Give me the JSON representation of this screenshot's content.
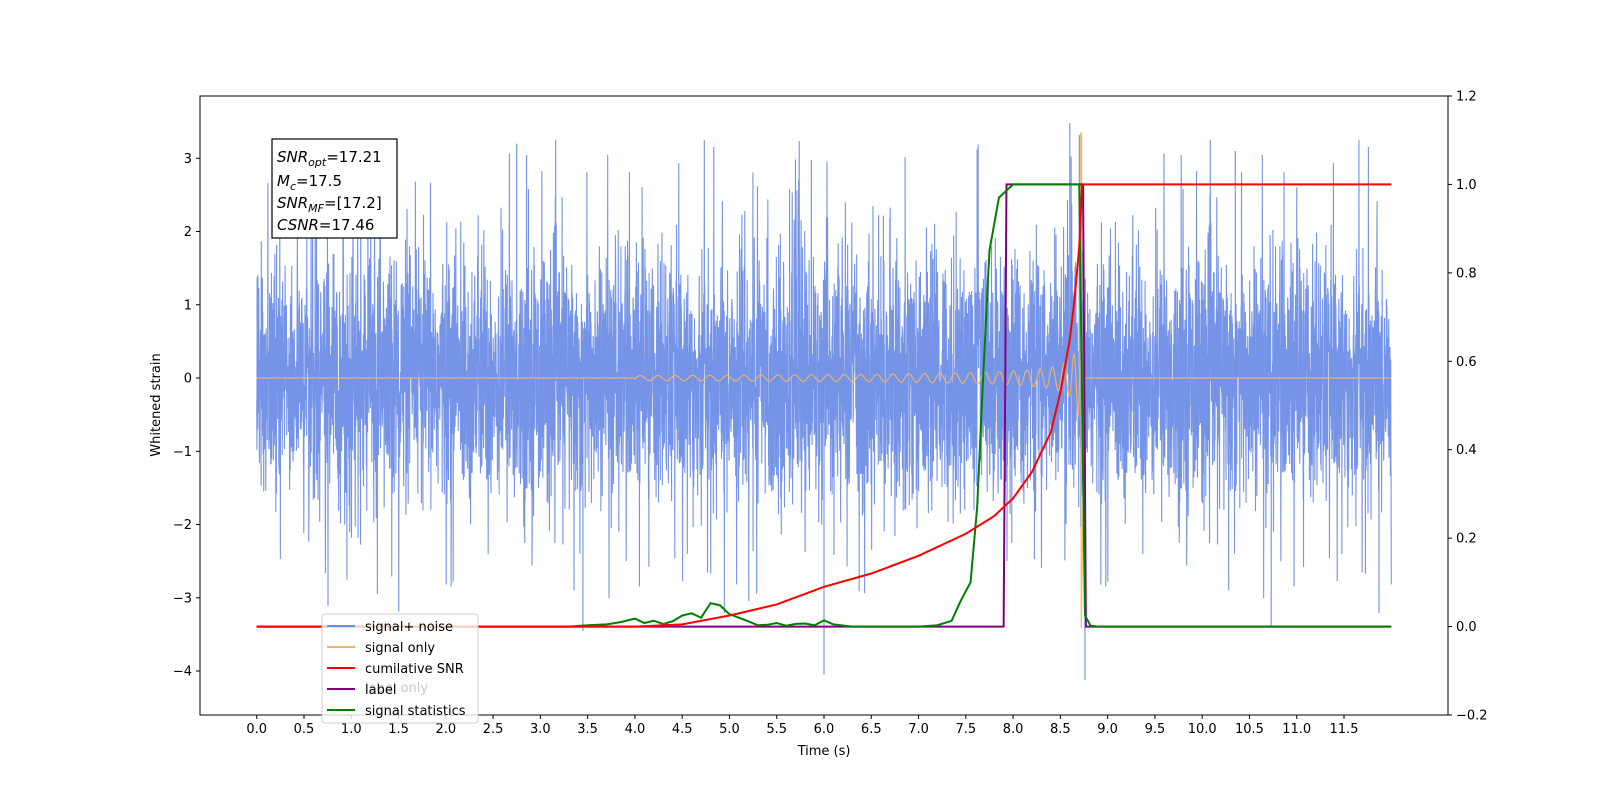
{
  "chart_data": {
    "type": "line",
    "xlabel": "Time (s)",
    "ylabel": "Whitened strain",
    "xlim": [
      -0.6,
      12.6
    ],
    "ylim_left": [
      -4.6,
      3.85
    ],
    "ylim_right": [
      -0.2,
      1.2
    ],
    "x_ticks": [
      "0.0",
      "0.5",
      "1.0",
      "1.5",
      "2.0",
      "2.5",
      "3.0",
      "3.5",
      "4.0",
      "4.5",
      "5.0",
      "5.5",
      "6.0",
      "6.5",
      "7.0",
      "7.5",
      "8.0",
      "8.5",
      "9.0",
      "9.5",
      "10.0",
      "10.5",
      "11.0",
      "11.5"
    ],
    "y_ticks_left": [
      "−4",
      "−3",
      "−2",
      "−1",
      "0",
      "1",
      "2",
      "3"
    ],
    "y_ticks_right": [
      "−0.2",
      "0.0",
      "0.2",
      "0.4",
      "0.6",
      "0.8",
      "1.0",
      "1.2"
    ],
    "grid": false,
    "legend_placement": "lower-left",
    "info_box": {
      "snr_opt": "17.21",
      "mc": "17.5",
      "snr_mf": "[17.2]",
      "csnr": "17.46"
    },
    "series": [
      {
        "name": "signal+ noise",
        "axis": "left",
        "color": "#6e8ee6",
        "t_start": 0.0,
        "t_end": 12.0,
        "typical_range": [
          -2.2,
          2.2
        ],
        "peaks": [
          3.48,
          3.32,
          3.2,
          3.1,
          -4.05,
          -4.12,
          -3.45,
          -3.4
        ]
      },
      {
        "name": "signal only",
        "axis": "left",
        "color": "#f5b461",
        "t_merger": 8.72,
        "peak_amplitude": 3.35,
        "min_value": -3.5
      },
      {
        "name": "cumilative SNR",
        "axis": "right",
        "color": "#ff0000",
        "x": [
          0.0,
          3.0,
          4.0,
          4.5,
          5.0,
          5.5,
          6.0,
          6.5,
          7.0,
          7.5,
          7.8,
          8.0,
          8.2,
          8.4,
          8.5,
          8.6,
          8.65,
          8.7,
          8.73,
          12.0
        ],
        "y": [
          0.0,
          0.0,
          0.0,
          0.005,
          0.025,
          0.05,
          0.09,
          0.12,
          0.16,
          0.21,
          0.25,
          0.29,
          0.35,
          0.44,
          0.53,
          0.65,
          0.74,
          0.86,
          1.0,
          1.0
        ]
      },
      {
        "name": "label",
        "axis": "right",
        "color": "#800080",
        "x": [
          0.0,
          7.9,
          7.93,
          8.74,
          8.77,
          12.0
        ],
        "y": [
          0.0,
          0.0,
          1.0,
          1.0,
          0.0,
          0.0
        ]
      },
      {
        "name": "signal statistics",
        "axis": "right",
        "color": "#008000",
        "x": [
          0.0,
          3.3,
          3.5,
          3.7,
          3.85,
          4.0,
          4.1,
          4.2,
          4.3,
          4.4,
          4.5,
          4.6,
          4.7,
          4.8,
          4.9,
          5.0,
          5.1,
          5.2,
          5.3,
          5.4,
          5.5,
          5.6,
          5.7,
          5.8,
          5.9,
          6.0,
          6.1,
          6.3,
          7.0,
          7.2,
          7.35,
          7.45,
          7.55,
          7.62,
          7.68,
          7.75,
          7.85,
          8.0,
          8.2,
          8.4,
          8.7,
          8.76,
          8.82,
          8.9,
          12.0
        ],
        "y": [
          0.0,
          0.0,
          0.003,
          0.005,
          0.01,
          0.018,
          0.008,
          0.013,
          0.006,
          0.012,
          0.025,
          0.03,
          0.02,
          0.053,
          0.048,
          0.028,
          0.02,
          0.012,
          0.003,
          0.004,
          0.008,
          0.002,
          0.006,
          0.007,
          0.003,
          0.014,
          0.005,
          0.0,
          0.0,
          0.003,
          0.013,
          0.06,
          0.1,
          0.27,
          0.55,
          0.85,
          0.97,
          1.0,
          1.0,
          1.0,
          1.0,
          0.025,
          0.002,
          0.0,
          0.0
        ]
      }
    ],
    "legend": [
      {
        "label": "signal+ noise",
        "color": "#6e8ee6"
      },
      {
        "label": "signal only",
        "color": "#f5b461"
      },
      {
        "label": "cumilative SNR",
        "color": "#ff0000"
      },
      {
        "label": "label",
        "color": "#800080"
      },
      {
        "label": "signal statistics",
        "color": "#008000"
      }
    ],
    "legend_hidden_text": "label only"
  }
}
